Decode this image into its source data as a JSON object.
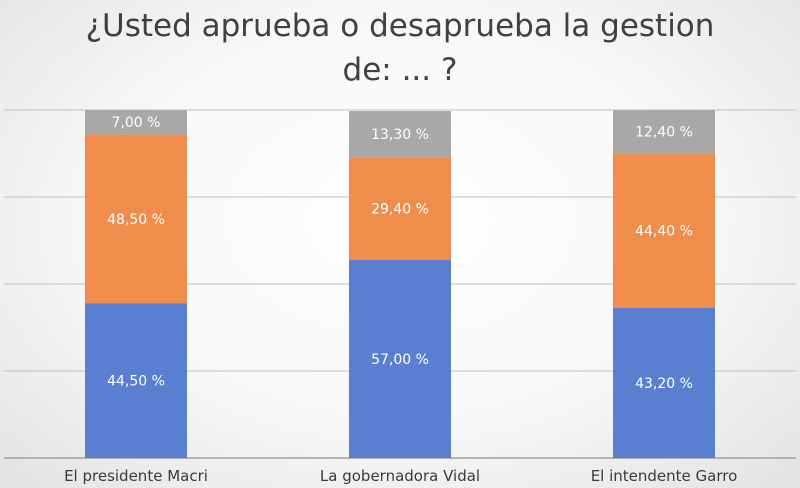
{
  "chart_data": {
    "type": "bar",
    "stacked": true,
    "title_lines": [
      "¿Usted aprueba o desaprueba la gestion",
      "de: ... ?"
    ],
    "categories": [
      "El presidente Macri",
      "La gobernadora Vidal",
      "El intendente Garro"
    ],
    "series": [
      {
        "values": [
          44.5,
          57.0,
          43.2
        ],
        "labels": [
          "44,50 %",
          "57,00 %",
          "43,20 %"
        ],
        "color": "#5b7fd0"
      },
      {
        "values": [
          48.5,
          29.4,
          44.4
        ],
        "labels": [
          "48,50 %",
          "29,40 %",
          "44,40 %"
        ],
        "color": "#ee8d4c"
      },
      {
        "values": [
          7.0,
          13.3,
          12.4
        ],
        "labels": [
          "7,00 %",
          "13,30 %",
          "12,40 %"
        ],
        "color": "#a8a8a8"
      }
    ],
    "ylim": [
      0,
      100
    ],
    "gridlines": [
      0,
      25,
      50,
      75,
      100
    ],
    "grid": true,
    "legend": "none",
    "colors": {
      "grid": "#bfbfbf",
      "axis": "#a0a0a0",
      "title": "#404040"
    }
  }
}
